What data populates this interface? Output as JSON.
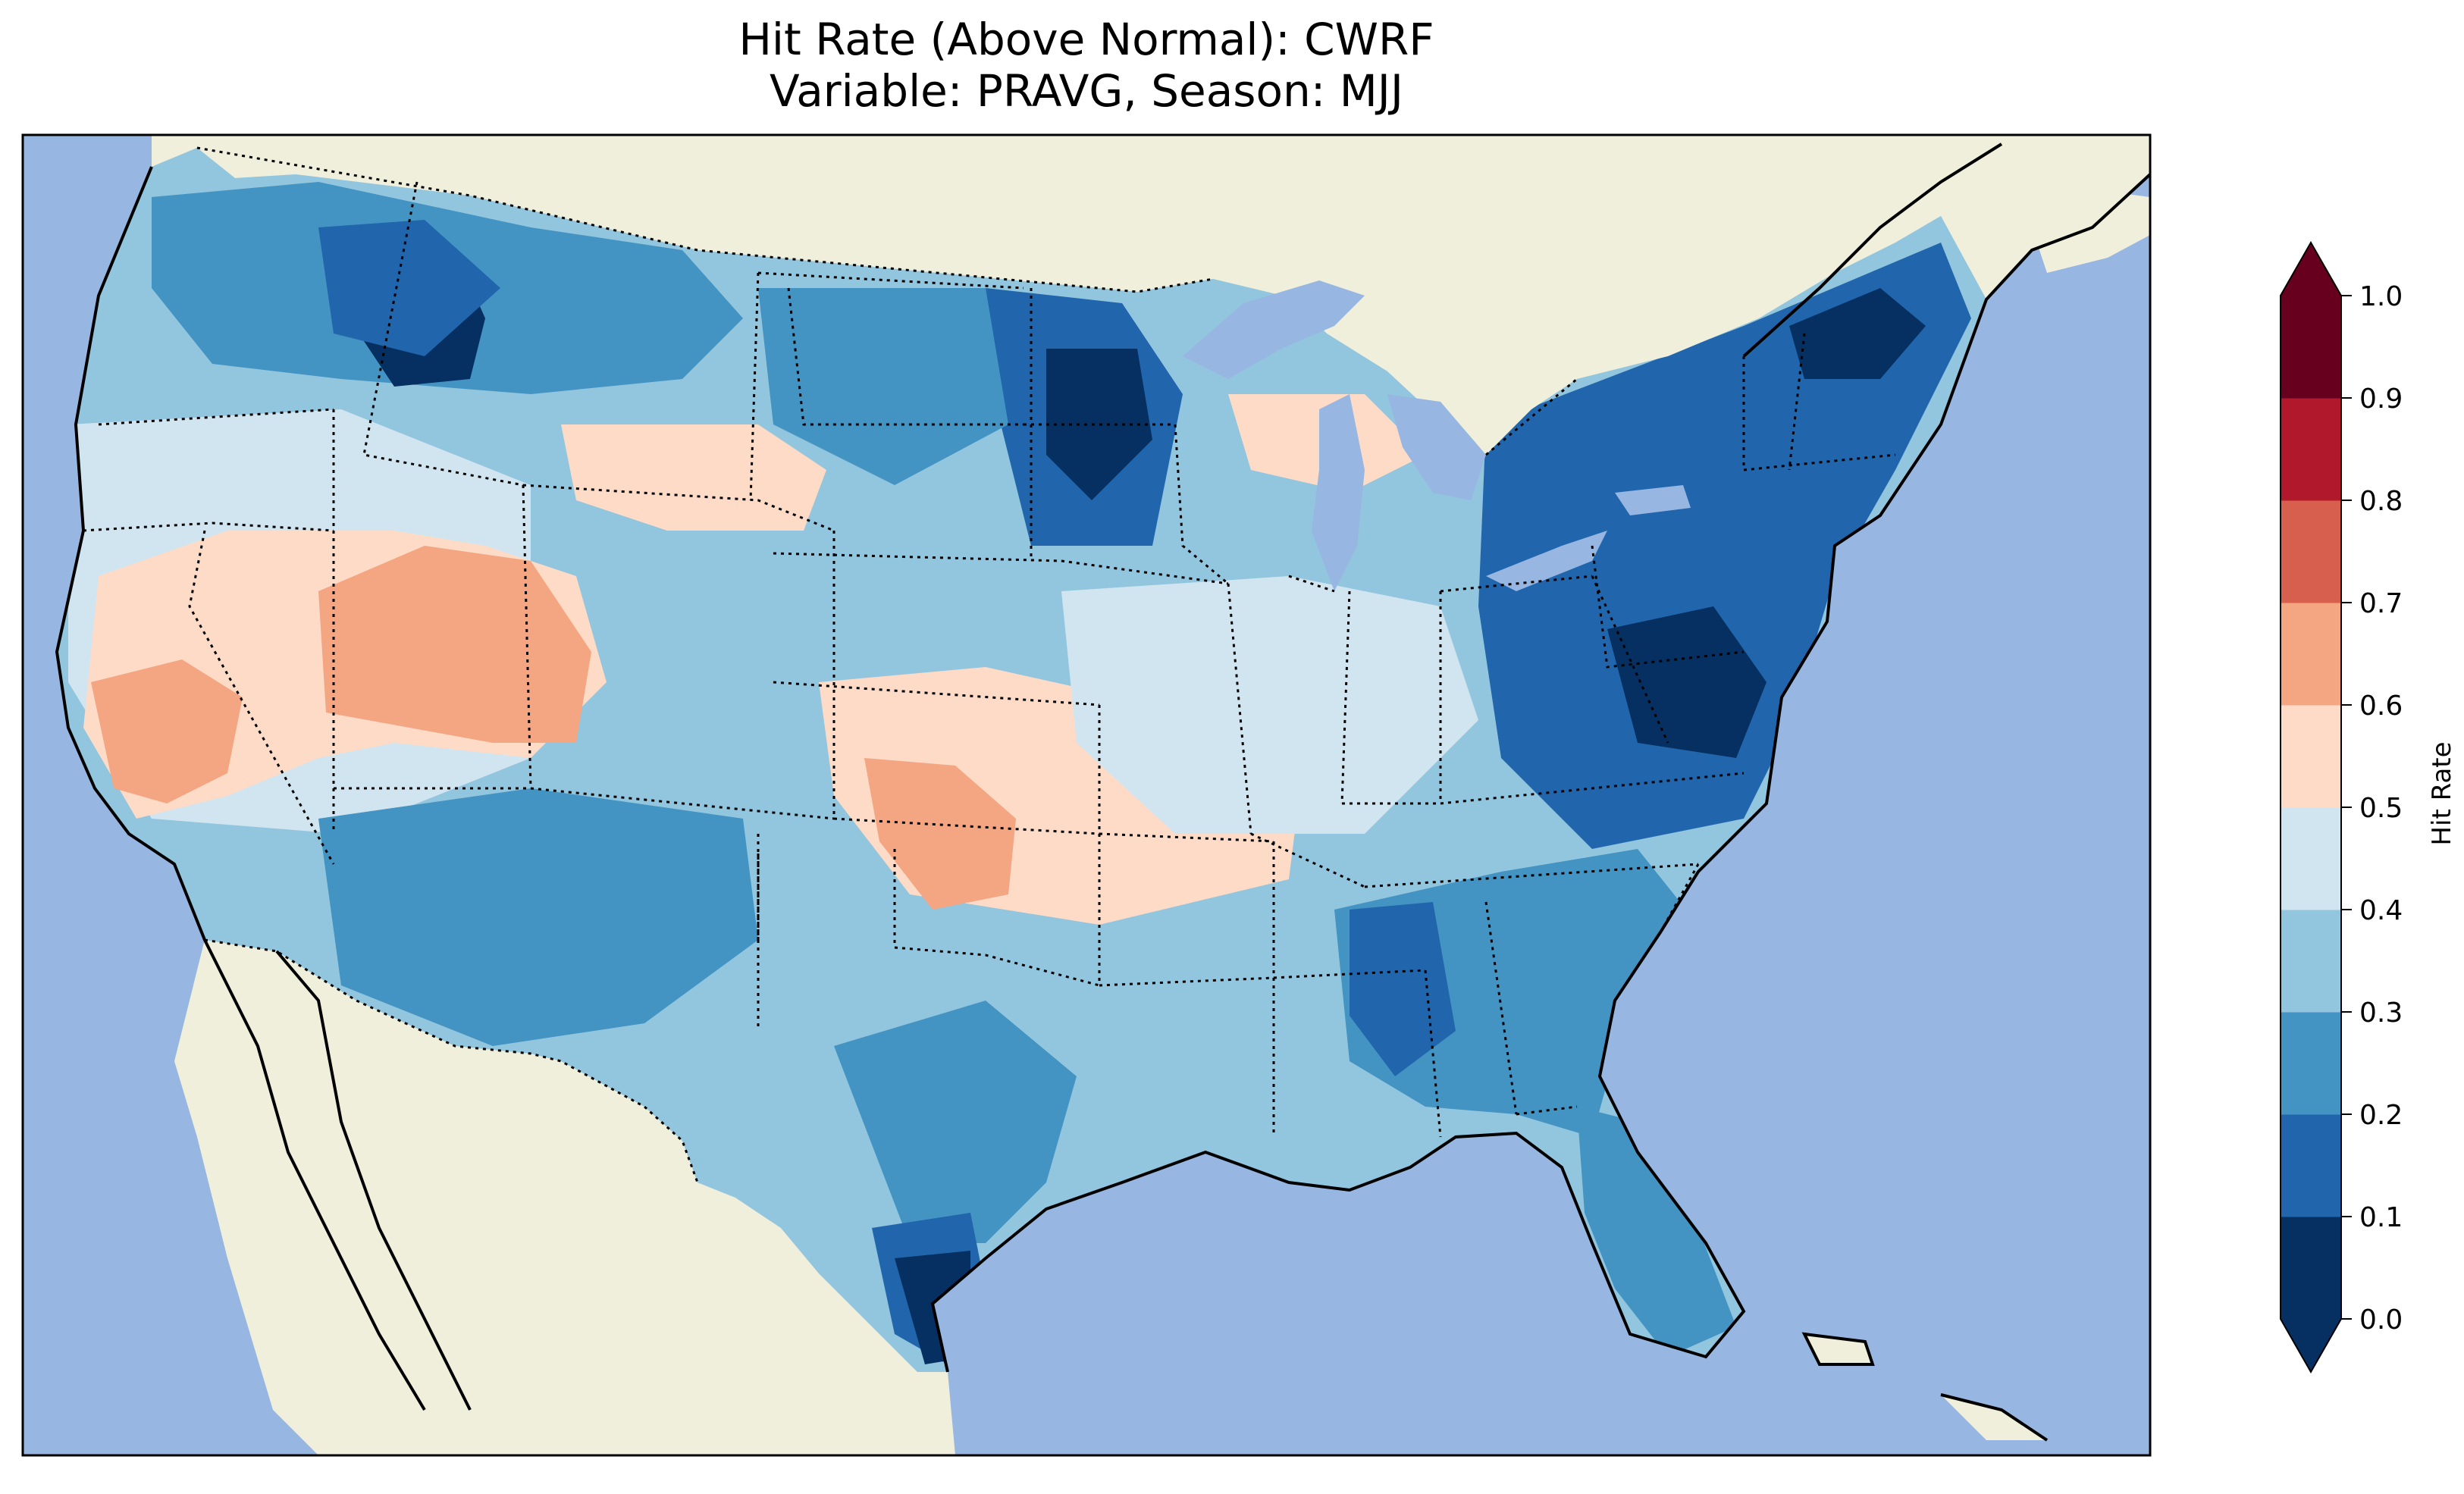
{
  "figure": {
    "title_line1": "Hit Rate (Above Normal): CWRF",
    "title_line2": "Variable: PRAVG, Season: MJJ"
  },
  "map": {
    "ocean_color": "#97b6e1",
    "land_color": "#efefdb",
    "coastline_color": "#000000",
    "border_style": "dotted"
  },
  "colorbar": {
    "label": "Hit Rate",
    "ticks": [
      "0.0",
      "0.1",
      "0.2",
      "0.3",
      "0.4",
      "0.5",
      "0.6",
      "0.7",
      "0.8",
      "0.9",
      "1.0"
    ],
    "colors": [
      "#053061",
      "#2166ac",
      "#4393c3",
      "#92c5de",
      "#d1e5f0",
      "#fddbc7",
      "#f4a582",
      "#d6604d",
      "#b2182b",
      "#67001f"
    ],
    "extend_low_color": "#053061",
    "extend_high_color": "#67001f"
  }
}
